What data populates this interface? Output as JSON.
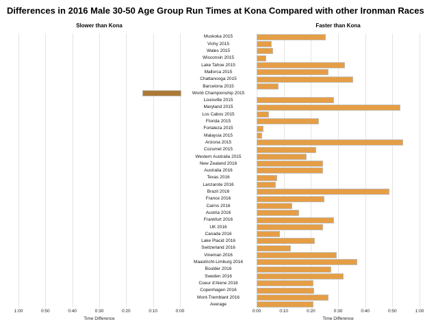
{
  "chart_data": {
    "type": "bar",
    "title": "Differences in 2016 Male 30-50 Age Group Run Times at Kona Compared with other Ironman Races",
    "left_header": "Slower than Kona",
    "right_header": "Faster than Kona",
    "xlabel": "Time Difference",
    "axis_max_minutes": 60,
    "left_ticks": [
      "1:00",
      "0:50",
      "0:40",
      "0:30",
      "0:20",
      "0:10",
      "0:00"
    ],
    "right_ticks": [
      "0:00",
      "0:10",
      "0:20",
      "0:30",
      "0:40",
      "0:50",
      "1:00"
    ],
    "value_convention": "minutes; positive = faster than Kona (right side), negative = slower than Kona (left side)",
    "categories": [
      "Muskoka 2015",
      "Vichy 2015",
      "Wales 2015",
      "Wisconsin 2015",
      "Lake Tahoe 2015",
      "Mallorca 2015",
      "Chattanooga 2015",
      "Barcelona 2015",
      "World Championship 2015",
      "Louisville 2015",
      "Maryland 2015",
      "Los Cabos 2015",
      "Florida 2015",
      "Fortaleza 2015",
      "Malaysia 2015",
      "Arizona 2015",
      "Cozumel 2015",
      "Western Australia 2015",
      "New Zealand 2016",
      "Australia 2016",
      "Texas 2016",
      "Lanzarote 2016",
      "Brazil 2016",
      "France 2016",
      "Cairns 2016",
      "Austria 2016",
      "Frankfurt 2016",
      "UK 2016",
      "Canada 2016",
      "Lake Placid 2016",
      "Switzerland 2016",
      "Vineman 2016",
      "Maastricht-Limburg 2016",
      "Boulder 2016",
      "Sweden 2016",
      "Coeur d'Alene 2016",
      "Copenhagen 2016",
      "Mont-Tremblant 2016",
      "Average"
    ],
    "values_minutes": [
      25,
      5,
      5.5,
      3,
      32,
      26,
      35,
      7.5,
      -14,
      28,
      52.5,
      4,
      22.5,
      2,
      1.5,
      53.5,
      21.5,
      18,
      24,
      24,
      7,
      6.5,
      48.5,
      24.5,
      12.5,
      15,
      28,
      24,
      8,
      21,
      12,
      29,
      36.5,
      27,
      31.5,
      20.3,
      20.6,
      26,
      20.3
    ],
    "colors": {
      "faster_bar": "#e59e45",
      "slower_bar": "#ab7a37",
      "bar_border": "#c2bdb6",
      "gridline": "#e5e3e0"
    }
  }
}
